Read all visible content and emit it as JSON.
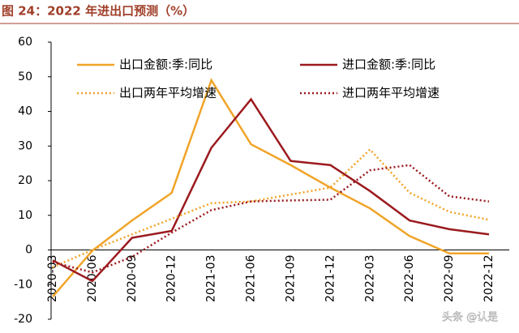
{
  "chart_data": {
    "type": "line",
    "title": "图 24：2022 年进出口预测（%）",
    "categories": [
      "2020-03",
      "2020-06",
      "2020-09",
      "2020-12",
      "2021-03",
      "2021-06",
      "2021-09",
      "2021-12",
      "2022-03",
      "2022-06",
      "2022-09",
      "2022-12"
    ],
    "series": [
      {
        "name": "出口金额:季:同比",
        "color": "#f0a428",
        "style": "solid",
        "values": [
          -13.5,
          -0.2,
          8.5,
          16.5,
          49,
          30.5,
          24.5,
          18,
          12,
          4,
          -1,
          -1
        ]
      },
      {
        "name": "进口金额:季:同比",
        "color": "#9b1a1e",
        "style": "solid",
        "values": [
          -3,
          -9,
          3.5,
          5.5,
          29.5,
          43.5,
          25.7,
          24.5,
          17,
          8.5,
          6,
          4.5
        ]
      },
      {
        "name": "出口两年平均增速",
        "color": "#f0a428",
        "style": "dotted",
        "values": [
          -5,
          0,
          4.5,
          9,
          13.5,
          14,
          16,
          18,
          29,
          16.5,
          11,
          8.7
        ]
      },
      {
        "name": "进口两年平均增速",
        "color": "#9b1a1e",
        "style": "dotted",
        "values": [
          -3.5,
          -6.5,
          -2,
          5,
          11.5,
          14,
          14.3,
          14.5,
          23,
          24.5,
          15.5,
          14
        ]
      }
    ],
    "ylim": [
      -20,
      60
    ],
    "yticks": [
      -20,
      -10,
      0,
      10,
      20,
      30,
      40,
      50,
      60
    ],
    "grid": false,
    "watermark": "头条 @认是"
  }
}
